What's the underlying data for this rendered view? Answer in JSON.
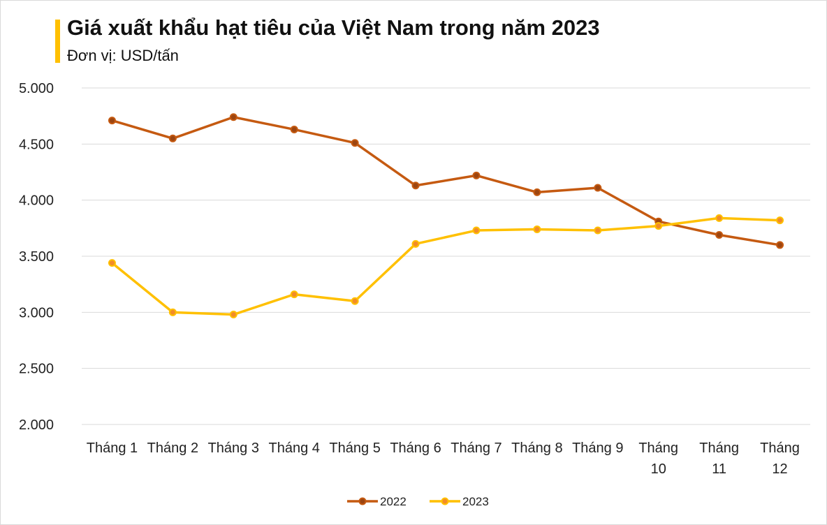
{
  "title": "Giá xuất khẩu hạt tiêu của Việt Nam trong năm 2023",
  "subtitle": "Đơn vị: USD/tấn",
  "chart_data": {
    "type": "line",
    "title": "Giá xuất khẩu hạt tiêu của Việt Nam trong năm 2023",
    "subtitle": "Đơn vị: USD/tấn",
    "categories": [
      "Tháng 1",
      "Tháng 2",
      "Tháng 3",
      "Tháng 4",
      "Tháng 5",
      "Tháng 6",
      "Tháng 7",
      "Tháng 8",
      "Tháng 9",
      "Tháng 10",
      "Tháng 11",
      "Tháng 12"
    ],
    "yticks": [
      "2.000",
      "2.500",
      "3.000",
      "3.500",
      "4.000",
      "4.500",
      "5.000"
    ],
    "ylim": [
      2000,
      5000
    ],
    "grid": true,
    "legend": "bottom",
    "series": [
      {
        "name": "2022",
        "color": "#C55A11",
        "values": [
          4710,
          4550,
          4740,
          4630,
          4510,
          4130,
          4220,
          4070,
          4110,
          3810,
          3690,
          3600
        ]
      },
      {
        "name": "2023",
        "color": "#FFC000",
        "values": [
          3440,
          3000,
          2980,
          3160,
          3100,
          3610,
          3730,
          3740,
          3730,
          3770,
          3840,
          3820
        ]
      }
    ]
  }
}
